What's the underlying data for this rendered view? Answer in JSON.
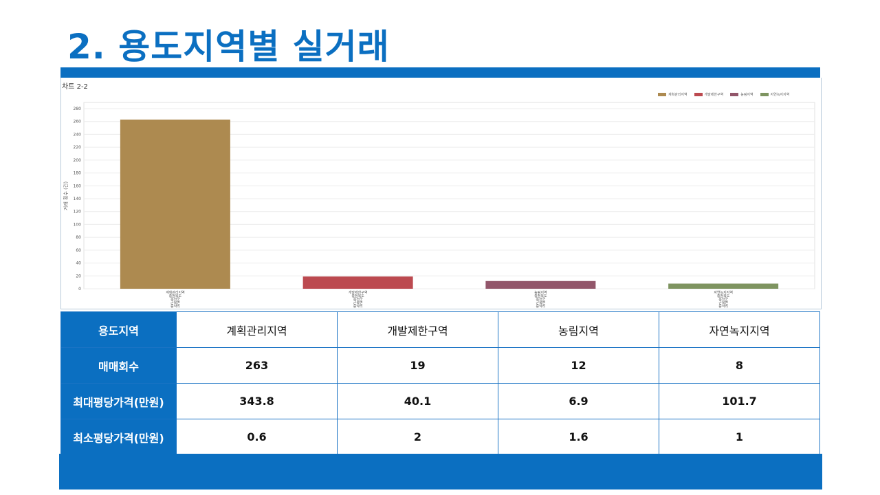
{
  "page_title": "2. 용도지역별 실거래",
  "chart_data": {
    "type": "bar",
    "title": "차트 2-2",
    "ylabel": "거래 횟수 (건)",
    "categories": [
      "계획관리지역",
      "개발제한구역",
      "농림지역",
      "자연녹지지역"
    ],
    "category_sublabels": [
      "충청북도",
      "옥천군",
      "군북면",
      "증약리"
    ],
    "values": [
      263,
      19,
      12,
      8
    ],
    "colors": [
      "#ad8a50",
      "#bc4a50",
      "#92566a",
      "#7e9460"
    ],
    "ylim": [
      0,
      280
    ],
    "yticks": [
      0,
      20,
      40,
      60,
      80,
      100,
      120,
      140,
      160,
      180,
      200,
      220,
      240,
      260,
      280
    ],
    "grid": true,
    "legend_position": "top-right"
  },
  "table": {
    "columns": [
      "용도지역",
      "계획관리지역",
      "개발제한구역",
      "농림지역",
      "자연녹지지역"
    ],
    "rows": [
      {
        "label": "매매회수",
        "values": [
          "263",
          "19",
          "12",
          "8"
        ]
      },
      {
        "label": "최대평당가격(만원)",
        "values": [
          "343.8",
          "40.1",
          "6.9",
          "101.7"
        ]
      },
      {
        "label": "최소평당가격(만원)",
        "values": [
          "0.6",
          "2",
          "1.6",
          "1"
        ]
      }
    ]
  },
  "colors": {
    "accent": "#0b6fc1"
  }
}
